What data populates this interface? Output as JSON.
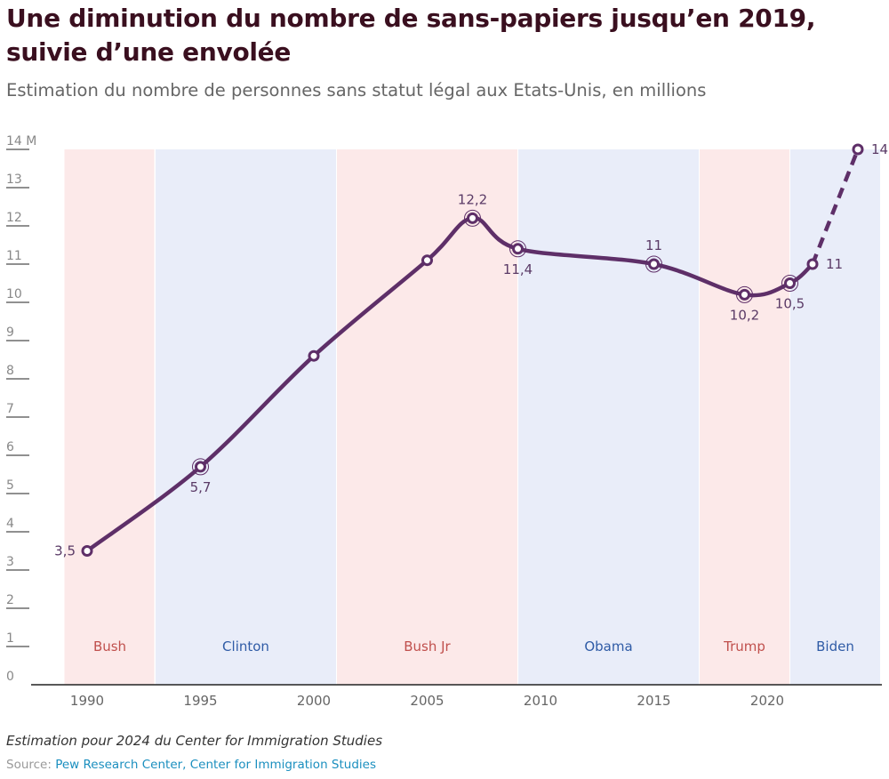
{
  "title": "Une diminution du nombre de sans-papiers jusqu’en 2019, suivie d’une envolée",
  "subtitle": "Estimation du nombre de personnes sans statut légal aux Etats-Unis, en millions",
  "note": "Estimation pour 2024 du Center for Immigration Studies",
  "source_prefix": "Source:",
  "source_value": "Pew Research Center, Center for Immigration Studies",
  "colors": {
    "line": "#5e2f68",
    "republican_band": "#fce9e9",
    "democrat_band": "#e9edf9",
    "republican_text": "#c0504d",
    "democrat_text": "#2f5ba6"
  },
  "chart_data": {
    "type": "line",
    "title": "Une diminution du nombre de sans-papiers jusqu’en 2019, suivie d’une envolée",
    "subtitle": "Estimation du nombre de personnes sans statut légal aux Etats-Unis, en millions",
    "xlabel": "",
    "ylabel": "",
    "xlim": [
      1989,
      2025
    ],
    "ylim": [
      0,
      14
    ],
    "y_ticks": [
      {
        "value": 0,
        "label": "0"
      },
      {
        "value": 1,
        "label": "1"
      },
      {
        "value": 2,
        "label": "2"
      },
      {
        "value": 3,
        "label": "3"
      },
      {
        "value": 4,
        "label": "4"
      },
      {
        "value": 5,
        "label": "5"
      },
      {
        "value": 6,
        "label": "6"
      },
      {
        "value": 7,
        "label": "7"
      },
      {
        "value": 8,
        "label": "8"
      },
      {
        "value": 9,
        "label": "9"
      },
      {
        "value": 10,
        "label": "10"
      },
      {
        "value": 11,
        "label": "11"
      },
      {
        "value": 12,
        "label": "12"
      },
      {
        "value": 13,
        "label": "13"
      },
      {
        "value": 14,
        "label": "14 M"
      }
    ],
    "x_ticks": [
      {
        "value": 1990,
        "label": "1990"
      },
      {
        "value": 1995,
        "label": "1995"
      },
      {
        "value": 2000,
        "label": "2000"
      },
      {
        "value": 2005,
        "label": "2005"
      },
      {
        "value": 2010,
        "label": "2010"
      },
      {
        "value": 2015,
        "label": "2015"
      },
      {
        "value": 2020,
        "label": "2020"
      }
    ],
    "series": [
      {
        "points": [
          {
            "x": 1990,
            "y": 3.5,
            "label": "3,5",
            "label_pos": "left",
            "ring": false
          },
          {
            "x": 1995,
            "y": 5.7,
            "label": "5,7",
            "label_pos": "below",
            "ring": true
          },
          {
            "x": 2000,
            "y": 8.6,
            "label": "",
            "label_pos": "",
            "ring": false
          },
          {
            "x": 2005,
            "y": 11.1,
            "label": "",
            "label_pos": "",
            "ring": false
          },
          {
            "x": 2007,
            "y": 12.2,
            "label": "12,2",
            "label_pos": "above",
            "ring": true
          },
          {
            "x": 2009,
            "y": 11.4,
            "label": "11,4",
            "label_pos": "below",
            "ring": true
          },
          {
            "x": 2015,
            "y": 11,
            "label": "11",
            "label_pos": "above",
            "ring": true
          },
          {
            "x": 2019,
            "y": 10.2,
            "label": "10,2",
            "label_pos": "below",
            "ring": true
          },
          {
            "x": 2021,
            "y": 10.5,
            "label": "10,5",
            "label_pos": "below",
            "ring": true
          },
          {
            "x": 2022,
            "y": 11,
            "label": "11",
            "label_pos": "right",
            "ring": false
          }
        ],
        "projection": [
          {
            "x": 2022,
            "y": 11
          },
          {
            "x": 2024,
            "y": 14,
            "label": "14",
            "label_pos": "right"
          }
        ]
      }
    ],
    "periods": [
      {
        "label": "Bush",
        "start": 1989,
        "end": 1993,
        "party": "republican"
      },
      {
        "label": "Clinton",
        "start": 1993,
        "end": 2001,
        "party": "democrat"
      },
      {
        "label": "Bush Jr",
        "start": 2001,
        "end": 2009,
        "party": "republican"
      },
      {
        "label": "Obama",
        "start": 2009,
        "end": 2017,
        "party": "democrat"
      },
      {
        "label": "Trump",
        "start": 2017,
        "end": 2021,
        "party": "republican"
      },
      {
        "label": "Biden",
        "start": 2021,
        "end": 2025,
        "party": "democrat"
      }
    ],
    "grid": false,
    "legend": "none"
  }
}
